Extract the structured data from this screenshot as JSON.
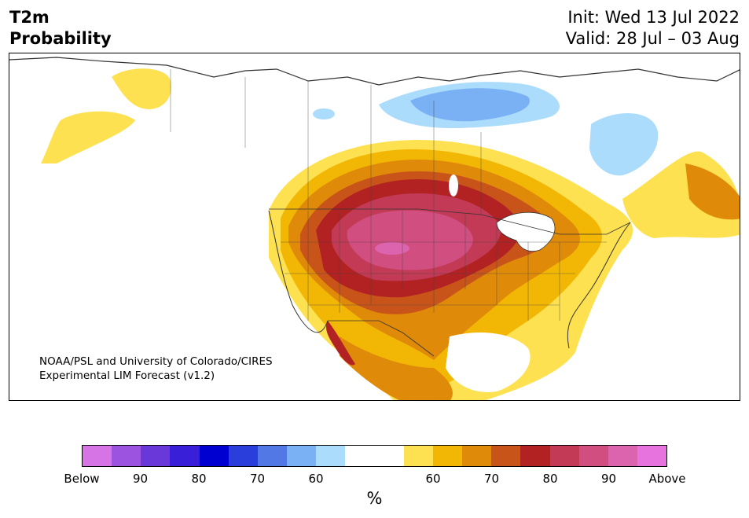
{
  "header": {
    "title_line1": "T2m",
    "title_line2": "Probability",
    "init_text": "Init: Wed 13 Jul 2022",
    "valid_text": "Valid: 28 Jul – 03 Aug"
  },
  "credit": {
    "line1": "NOAA/PSL and University of Colorado/CIRES",
    "line2": "Experimental LIM Forecast (v1.2)"
  },
  "colorbar": {
    "unit": "%",
    "tick_labels": [
      "Below",
      "90",
      "80",
      "70",
      "60",
      "60",
      "70",
      "80",
      "90",
      "Above"
    ],
    "colors": [
      "#d674e6",
      "#9c53e0",
      "#6a37d8",
      "#3a1fd8",
      "#0000d0",
      "#2a3edc",
      "#5278e6",
      "#7ab0f4",
      "#acdcfc",
      "#ffffff",
      "#ffffff",
      "#fde150",
      "#f2b705",
      "#e08a0a",
      "#c9541a",
      "#b22222",
      "#c23a55",
      "#d04f80",
      "#dc64ae",
      "#e673de"
    ]
  },
  "map_colors": {
    "cool_light": "#acdcfc",
    "cool_mid": "#7ab0f4",
    "warm_1": "#fde150",
    "warm_2": "#f2b705",
    "warm_3": "#e08a0a",
    "warm_4": "#c9541a",
    "warm_5": "#b22222",
    "warm_6": "#c23a55",
    "warm_7": "#d04f80",
    "warm_8": "#dc64ae"
  }
}
